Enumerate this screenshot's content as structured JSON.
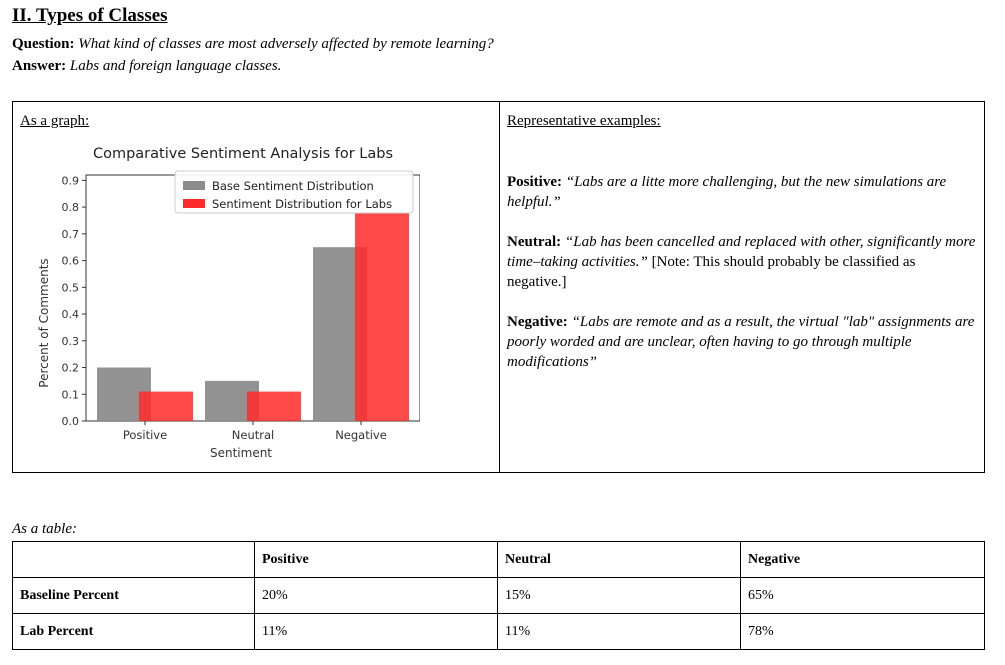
{
  "section": {
    "heading": "II. Types of Classes",
    "question_label": "Question:",
    "question_text": "What kind of classes are most adversely affected by remote learning?",
    "answer_label": "Answer:",
    "answer_text": "Labs and foreign language classes."
  },
  "graph_cell": {
    "label": "As a graph:"
  },
  "examples_cell": {
    "label": "Representative examples:",
    "items": [
      {
        "label": "Positive:",
        "quote": "“Labs are a litte more challenging, but the new simulations are helpful.”",
        "note": ""
      },
      {
        "label": "Neutral:",
        "quote": "“Lab has been cancelled and replaced with other, significantly more time–taking activities.”",
        "note": "[Note: This should probably be classified as negative.]"
      },
      {
        "label": "Negative:",
        "quote": "“Labs are remote and as a result, the virtual \"lab\" assignments are poorly worded and are unclear, often having to go through multiple modifications”",
        "note": ""
      }
    ]
  },
  "table_section": {
    "caption": "As a table:",
    "header": [
      "",
      "Positive",
      "Neutral",
      "Negative"
    ],
    "rows": [
      [
        "Baseline Percent",
        "20%",
        "15%",
        "65%"
      ],
      [
        "Lab Percent",
        "11%",
        "11%",
        "78%"
      ]
    ]
  },
  "chart_data": {
    "type": "bar",
    "title": "Comparative Sentiment Analysis for Labs",
    "xlabel": "Sentiment",
    "ylabel": "Percent of Comments",
    "categories": [
      "Positive",
      "Neutral",
      "Negative"
    ],
    "series": [
      {
        "name": "Base Sentiment Distribution",
        "values": [
          0.2,
          0.15,
          0.65
        ],
        "color": "#8c8c8c"
      },
      {
        "name": "Sentiment Distribution for Labs",
        "values": [
          0.11,
          0.11,
          0.78
        ],
        "color": "#ff2a2a"
      }
    ],
    "ylim": [
      0,
      0.92
    ],
    "yticks": [
      "0.0",
      "0.1",
      "0.2",
      "0.3",
      "0.4",
      "0.5",
      "0.6",
      "0.7",
      "0.8",
      "0.9"
    ],
    "legend_position": "top-right",
    "grid": false
  }
}
